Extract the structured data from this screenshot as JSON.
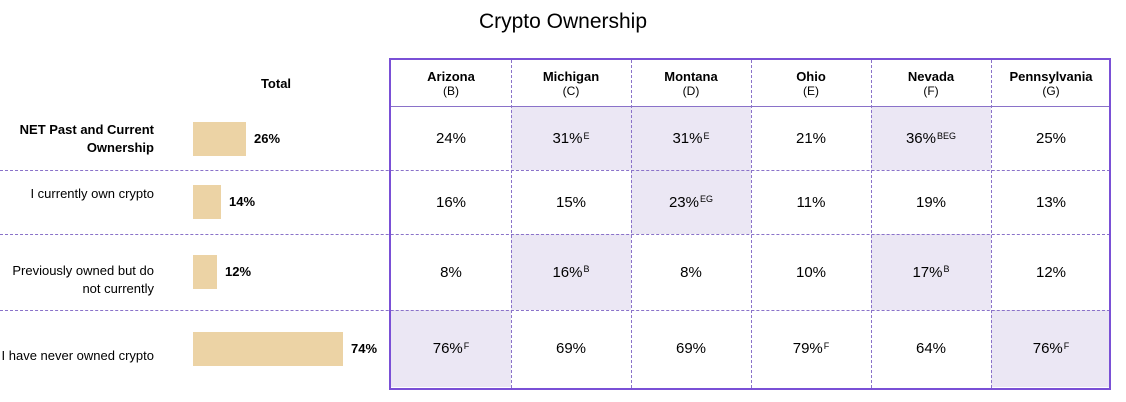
{
  "title": "Crypto Ownership",
  "total_header": "Total",
  "columns": [
    {
      "name": "Arizona",
      "letter": "(B)"
    },
    {
      "name": "Michigan",
      "letter": "(C)"
    },
    {
      "name": "Montana",
      "letter": "(D)"
    },
    {
      "name": "Ohio",
      "letter": "(E)"
    },
    {
      "name": "Nevada",
      "letter": "(F)"
    },
    {
      "name": "Pennsylvania",
      "letter": "(G)"
    }
  ],
  "colors": {
    "total_bar": "#ecd3a5",
    "highlight": "#ebe7f4",
    "frame": "#7a50d6"
  },
  "chart_data": {
    "type": "table",
    "title": "Crypto Ownership",
    "rows": [
      {
        "label": "NET Past and Current Ownership",
        "bold": true,
        "total": 26,
        "total_label": "26%",
        "cells": [
          {
            "value": "24%",
            "sig": "",
            "highlight": false
          },
          {
            "value": "31%",
            "sig": "E",
            "highlight": true
          },
          {
            "value": "31%",
            "sig": "E",
            "highlight": true
          },
          {
            "value": "21%",
            "sig": "",
            "highlight": false
          },
          {
            "value": "36%",
            "sig": "BEG",
            "highlight": true
          },
          {
            "value": "25%",
            "sig": "",
            "highlight": false
          }
        ]
      },
      {
        "label": "I currently own crypto",
        "bold": false,
        "total": 14,
        "total_label": "14%",
        "cells": [
          {
            "value": "16%",
            "sig": "",
            "highlight": false
          },
          {
            "value": "15%",
            "sig": "",
            "highlight": false
          },
          {
            "value": "23%",
            "sig": "EG",
            "highlight": true
          },
          {
            "value": "11%",
            "sig": "",
            "highlight": false
          },
          {
            "value": "19%",
            "sig": "",
            "highlight": false
          },
          {
            "value": "13%",
            "sig": "",
            "highlight": false
          }
        ]
      },
      {
        "label": "Previously owned but do not currently",
        "bold": false,
        "total": 12,
        "total_label": "12%",
        "cells": [
          {
            "value": "8%",
            "sig": "",
            "highlight": false
          },
          {
            "value": "16%",
            "sig": "B",
            "highlight": true
          },
          {
            "value": "8%",
            "sig": "",
            "highlight": false
          },
          {
            "value": "10%",
            "sig": "",
            "highlight": false
          },
          {
            "value": "17%",
            "sig": "B",
            "highlight": true
          },
          {
            "value": "12%",
            "sig": "",
            "highlight": false
          }
        ]
      },
      {
        "label": "I have never owned crypto",
        "bold": false,
        "total": 74,
        "total_label": "74%",
        "cells": [
          {
            "value": "76%",
            "sig": "F",
            "highlight": true
          },
          {
            "value": "69%",
            "sig": "",
            "highlight": false
          },
          {
            "value": "69%",
            "sig": "",
            "highlight": false
          },
          {
            "value": "79%",
            "sig": "F",
            "highlight": false
          },
          {
            "value": "64%",
            "sig": "",
            "highlight": false
          },
          {
            "value": "76%",
            "sig": "F",
            "highlight": true
          }
        ]
      }
    ]
  }
}
